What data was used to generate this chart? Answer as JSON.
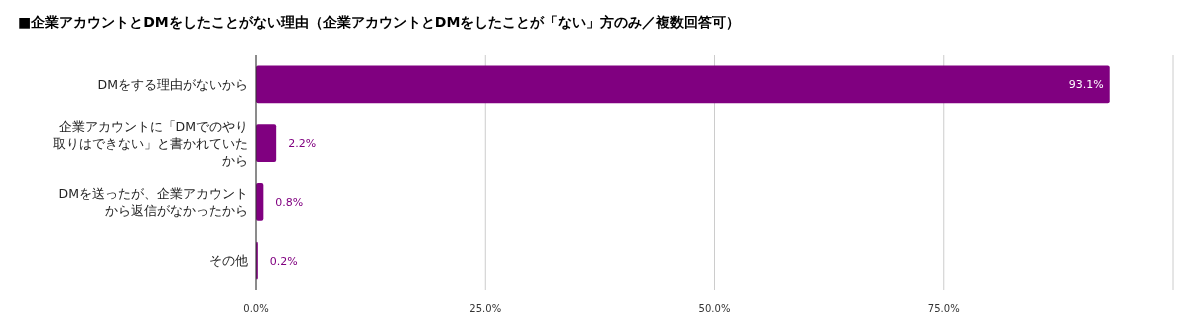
{
  "chart_data": {
    "type": "bar",
    "orientation": "horizontal",
    "title": "■企業アカウントとDMをしたことがない理由（企業アカウントとDMをしたことが「ない」方のみ／複数回答可）",
    "categories": [
      "DMをする理由がないから",
      "企業アカウントに「DMでのやり取りはできない」と書かれていたから",
      "DMを送ったが、企業アカウントから返信がなかったから",
      "その他"
    ],
    "values": [
      93.1,
      2.2,
      0.8,
      0.2
    ],
    "value_labels": [
      "93.1%",
      "2.2%",
      "0.8%",
      "0.2%"
    ],
    "color": "#800080",
    "xlim": [
      0,
      100
    ],
    "xticks": [
      {
        "value": 0,
        "label": "0.0%"
      },
      {
        "value": 25,
        "label": "25.0%"
      },
      {
        "value": 50,
        "label": "50.0%"
      },
      {
        "value": 75,
        "label": "75.0%"
      },
      {
        "value": 100,
        "label": null
      }
    ],
    "grid": "x"
  }
}
